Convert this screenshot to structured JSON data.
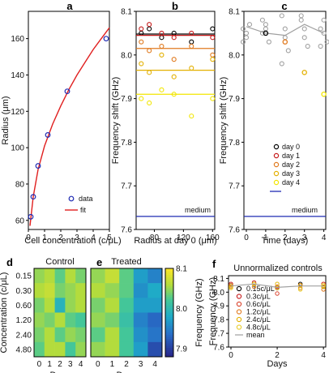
{
  "colors": {
    "day0": "#000000",
    "day1": "#c61a1a",
    "day2": "#e07a1f",
    "day3": "#e3b000",
    "day4": "#f2e600",
    "data_blue": "#1f2bb3",
    "fit_red": "#e01f1f",
    "medium": "#1f2bb3",
    "gray": "#a0a0a0"
  },
  "chart_data": [
    {
      "panel_label": "a",
      "type": "scatter",
      "xlabel": "Cell concentration (c/μL)",
      "ylabel": "Radius (μm)",
      "xlim": [
        0,
        5
      ],
      "ylim": [
        55,
        175
      ],
      "xticks": [
        "0",
        "1",
        "2",
        "3",
        "4",
        "5"
      ],
      "yticks": [
        "60",
        "80",
        "100",
        "120",
        "140",
        "160"
      ],
      "series": [
        {
          "name": "data",
          "x": [
            0.15,
            0.3,
            0.6,
            1.2,
            2.4,
            4.8
          ],
          "y": [
            62,
            73,
            90,
            107,
            131,
            160
          ]
        },
        {
          "name": "fit",
          "x": [
            0.1,
            0.3,
            0.6,
            1.0,
            1.5,
            2.0,
            2.5,
            3.0,
            3.5,
            4.0,
            4.5,
            5.0
          ],
          "y": [
            57,
            73,
            88,
            101,
            113,
            123,
            132,
            140,
            147,
            154,
            160,
            166
          ]
        }
      ],
      "legend_position": "bottom-right"
    },
    {
      "panel_label": "b",
      "type": "scatter",
      "xlabel": "Radius at day 0 (μm)",
      "ylabel": "Frequency shift (GHz)",
      "xlim": [
        55,
        163
      ],
      "ylim": [
        7.6,
        8.1
      ],
      "xticks": [
        "80",
        "120",
        "160"
      ],
      "yticks": [
        "7.6",
        "7.7",
        "7.8",
        "7.9",
        "8.0",
        "8.1"
      ],
      "series": [
        {
          "name": "day 0",
          "x": [
            62,
            73,
            90,
            107,
            131,
            160
          ],
          "y": [
            8.05,
            8.06,
            8.04,
            8.05,
            8.03,
            8.06
          ],
          "mean": 8.048
        },
        {
          "name": "day 1",
          "x": [
            62,
            73,
            90,
            107,
            131,
            160
          ],
          "y": [
            8.06,
            8.07,
            8.05,
            8.04,
            8.05,
            8.04
          ],
          "mean": 8.045
        },
        {
          "name": "day 2",
          "x": [
            62,
            73,
            90,
            107,
            131,
            160
          ],
          "y": [
            8.03,
            8.01,
            8.02,
            7.99,
            8.02,
            8.0
          ],
          "mean": 8.015
        },
        {
          "name": "day 3",
          "x": [
            62,
            73,
            90,
            107,
            131,
            160
          ],
          "y": [
            7.98,
            7.96,
            8.0,
            7.95,
            7.97,
            7.99
          ],
          "mean": 7.965
        },
        {
          "name": "day 4",
          "x": [
            62,
            73,
            90,
            107,
            131,
            160
          ],
          "y": [
            7.9,
            7.89,
            7.92,
            7.91,
            7.86,
            7.9
          ],
          "mean": 7.91
        }
      ],
      "medium_value": 7.63,
      "medium_label": "medium"
    },
    {
      "panel_label": "c",
      "type": "scatter",
      "xlabel": "Time (days)",
      "ylabel": "Frequency shift (GHz)",
      "xlim": [
        0,
        4.1
      ],
      "ylim": [
        7.6,
        8.1
      ],
      "xticks": [
        "0",
        "1",
        "2",
        "3",
        "4"
      ],
      "yticks": [
        "7.6",
        "7.7",
        "7.8",
        "7.9",
        "8.0",
        "8.1"
      ],
      "gray_series": [
        {
          "x": [
            0,
            0,
            0,
            0,
            0
          ],
          "y": [
            8.06,
            8.04,
            8.07,
            8.03,
            8.05
          ]
        },
        {
          "x": [
            1,
            1,
            1,
            1,
            1
          ],
          "y": [
            8.08,
            8.06,
            8.03,
            8.05,
            8.07
          ]
        },
        {
          "x": [
            2,
            2,
            2,
            2,
            2
          ],
          "y": [
            8.09,
            8.06,
            8.01,
            7.98,
            8.04
          ]
        },
        {
          "x": [
            3,
            3,
            3,
            3,
            3
          ],
          "y": [
            8.09,
            8.06,
            8.02,
            8.08,
            8.04
          ]
        },
        {
          "x": [
            4,
            4,
            4,
            4,
            4
          ],
          "y": [
            8.06,
            8.08,
            8.03,
            8.02,
            8.05
          ]
        }
      ],
      "gray_line": {
        "x": [
          0,
          1,
          2,
          3,
          4
        ],
        "y": [
          8.065,
          8.05,
          8.045,
          8.07,
          8.05
        ]
      },
      "colored_points": [
        {
          "day": 0,
          "x": 1.0,
          "y": 8.05
        },
        {
          "day": 2,
          "x": 2.0,
          "y": 8.03
        },
        {
          "day": 3,
          "x": 3.0,
          "y": 7.96
        },
        {
          "day": 4,
          "x": 4.0,
          "y": 7.91
        }
      ],
      "legend": [
        "day 0",
        "day 1",
        "day 2",
        "day 3",
        "day 4"
      ],
      "medium_value": 7.63,
      "medium_label": "medium"
    },
    {
      "panel_label": "d",
      "type": "heatmap",
      "title": "Control",
      "xlabel": "Days",
      "ylabel": "Concentration (c/μL)",
      "xticks": [
        "0",
        "1",
        "2",
        "3",
        "4"
      ],
      "rows": [
        "0.15",
        "0.30",
        "0.60",
        "1.20",
        "2.40",
        "4.80"
      ],
      "values": [
        [
          8.05,
          8.06,
          8.03,
          8.06,
          8.04
        ],
        [
          8.06,
          8.07,
          8.04,
          8.05,
          8.06
        ],
        [
          8.04,
          8.06,
          7.99,
          8.05,
          8.06
        ],
        [
          8.05,
          8.04,
          8.06,
          8.03,
          8.02
        ],
        [
          8.04,
          8.06,
          8.03,
          8.05,
          8.04
        ],
        [
          8.03,
          8.06,
          8.06,
          8.02,
          8.05
        ]
      ]
    },
    {
      "panel_label": "e",
      "type": "heatmap",
      "title": "Treated",
      "xlabel": "Days",
      "xticks": [
        "0",
        "1",
        "2",
        "3",
        "4"
      ],
      "values": [
        [
          8.05,
          8.07,
          8.03,
          7.97,
          7.95
        ],
        [
          8.06,
          8.05,
          8.03,
          7.96,
          7.98
        ],
        [
          8.04,
          8.06,
          8.02,
          7.97,
          7.97
        ],
        [
          8.05,
          8.04,
          8.01,
          7.95,
          7.93
        ],
        [
          8.03,
          8.06,
          8.02,
          7.96,
          7.94
        ],
        [
          8.05,
          8.06,
          8.02,
          7.97,
          7.91
        ]
      ],
      "colorbar": {
        "label": "Frequency (GHz)",
        "ticks": [
          "7.9",
          "8.0",
          "8.1"
        ],
        "range": [
          7.88,
          8.1
        ]
      }
    },
    {
      "panel_label": "f",
      "type": "line",
      "title": "Unnormalized controls",
      "xlabel": "Days",
      "ylabel": "Frequency (GHz)",
      "xlim": [
        0,
        4.1
      ],
      "ylim": [
        7.6,
        8.12
      ],
      "xticks": [
        "0",
        "2",
        "4"
      ],
      "yticks": [
        "7.6",
        "7.7",
        "7.8",
        "7.9",
        "8.0",
        "8.1"
      ],
      "series": [
        {
          "name": "0.15c/μL",
          "x": [
            0,
            1,
            2,
            3,
            4
          ],
          "y": [
            8.05,
            8.06,
            8.03,
            8.06,
            8.04
          ]
        },
        {
          "name": "0.3c/μL",
          "x": [
            0,
            1,
            2,
            3,
            4
          ],
          "y": [
            8.06,
            8.07,
            8.04,
            8.05,
            8.06
          ]
        },
        {
          "name": "0.6c/μL",
          "x": [
            0,
            1,
            2,
            3,
            4
          ],
          "y": [
            8.04,
            8.06,
            7.99,
            8.05,
            8.06
          ]
        },
        {
          "name": "1.2c/μL",
          "x": [
            0,
            1,
            2,
            3,
            4
          ],
          "y": [
            8.05,
            8.04,
            8.06,
            8.03,
            8.02
          ]
        },
        {
          "name": "2.4c/μL",
          "x": [
            0,
            1,
            2,
            3,
            4
          ],
          "y": [
            8.04,
            8.06,
            8.03,
            8.05,
            8.04
          ]
        },
        {
          "name": "4.8c/μL",
          "x": [
            0,
            1,
            2,
            3,
            4
          ],
          "y": [
            8.03,
            8.06,
            8.06,
            8.02,
            8.05
          ]
        },
        {
          "name": "mean",
          "x": [
            0,
            1,
            2,
            3,
            4
          ],
          "y": [
            8.045,
            8.06,
            8.035,
            8.045,
            8.045
          ]
        }
      ]
    }
  ]
}
